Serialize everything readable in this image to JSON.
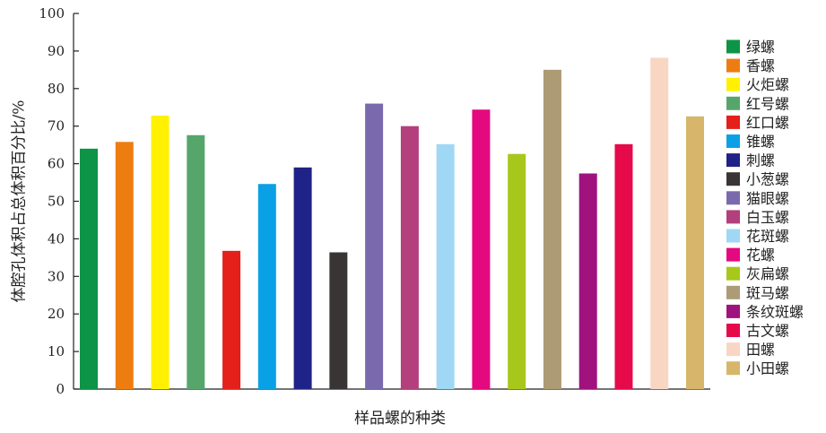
{
  "chart_data": {
    "type": "bar",
    "title": "",
    "xlabel": "样品螺的种类",
    "ylabel": "体腔孔体积占总体积百分比/%",
    "ylim": [
      0,
      100
    ],
    "yticks": [
      0,
      10,
      20,
      30,
      40,
      50,
      60,
      70,
      80,
      90,
      100
    ],
    "grid": false,
    "legend_position": "right",
    "categories": [
      "绿螺",
      "香螺",
      "火炬螺",
      "红号螺",
      "红口螺",
      "锥螺",
      "刺螺",
      "小葱螺",
      "猫眼螺",
      "白玉螺",
      "花斑螺",
      "花螺",
      "灰扁螺",
      "斑马螺",
      "条纹斑螺",
      "古文螺",
      "田螺",
      "小田螺"
    ],
    "values": [
      64,
      65.8,
      72.8,
      67.6,
      36.8,
      54.6,
      59,
      36.4,
      76,
      70,
      65.2,
      74.4,
      62.6,
      85,
      57.4,
      65.2,
      88.2,
      72.6
    ],
    "colors": [
      "#0d9447",
      "#ee7d11",
      "#fff100",
      "#56a66b",
      "#e51f1a",
      "#0aa0e6",
      "#1f2286",
      "#3a3535",
      "#7a6aad",
      "#b33f7d",
      "#9fd8f4",
      "#e4097f",
      "#a8c71b",
      "#ad9b75",
      "#a0137e",
      "#e60a4a",
      "#f9d6c4",
      "#d7b56b"
    ]
  }
}
